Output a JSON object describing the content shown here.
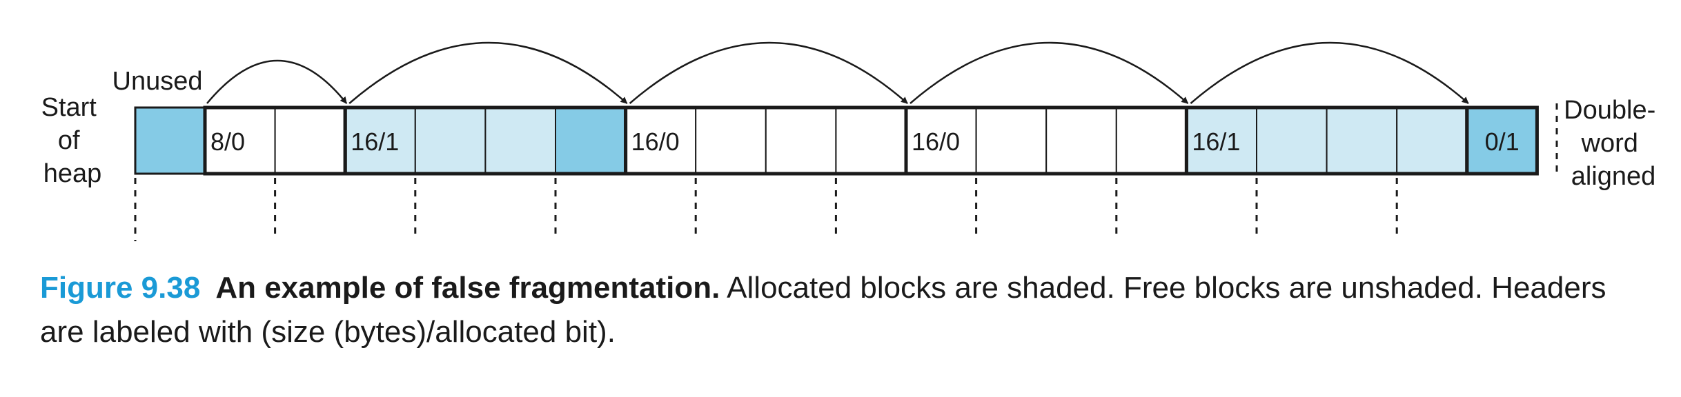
{
  "labels": {
    "start_of_heap": [
      "Start",
      "of",
      "heap"
    ],
    "unused": "Unused",
    "double_word_aligned": [
      "Double-",
      "word",
      "aligned"
    ]
  },
  "heap": {
    "words": [
      {
        "header": "8/0",
        "fill": "white"
      },
      {
        "header": "",
        "fill": "white"
      },
      {
        "header": "16/1",
        "fill": "light"
      },
      {
        "header": "",
        "fill": "light"
      },
      {
        "header": "",
        "fill": "light"
      },
      {
        "header": "",
        "fill": "dark"
      },
      {
        "header": "16/0",
        "fill": "white"
      },
      {
        "header": "",
        "fill": "white"
      },
      {
        "header": "",
        "fill": "white"
      },
      {
        "header": "",
        "fill": "white"
      },
      {
        "header": "16/0",
        "fill": "white"
      },
      {
        "header": "",
        "fill": "white"
      },
      {
        "header": "",
        "fill": "white"
      },
      {
        "header": "",
        "fill": "white"
      },
      {
        "header": "16/1",
        "fill": "light"
      },
      {
        "header": "",
        "fill": "light"
      },
      {
        "header": "",
        "fill": "light"
      },
      {
        "header": "",
        "fill": "light"
      }
    ],
    "epilogue": {
      "header": "0/1",
      "fill": "dark"
    },
    "block_starts": [
      0,
      2,
      6,
      10,
      14,
      18
    ]
  },
  "colors": {
    "light": "#cfe9f3",
    "dark": "#85cbe6",
    "white": "#ffffff",
    "stroke": "#1a1a1a",
    "caption_accent": "#1a9ad6"
  },
  "caption": {
    "figure_number": "Figure 9.38",
    "title": "An example of false fragmentation.",
    "body": " Allocated blocks are shaded. Free blocks are unshaded. Headers are labeled with (size (bytes)/allocated bit)."
  }
}
